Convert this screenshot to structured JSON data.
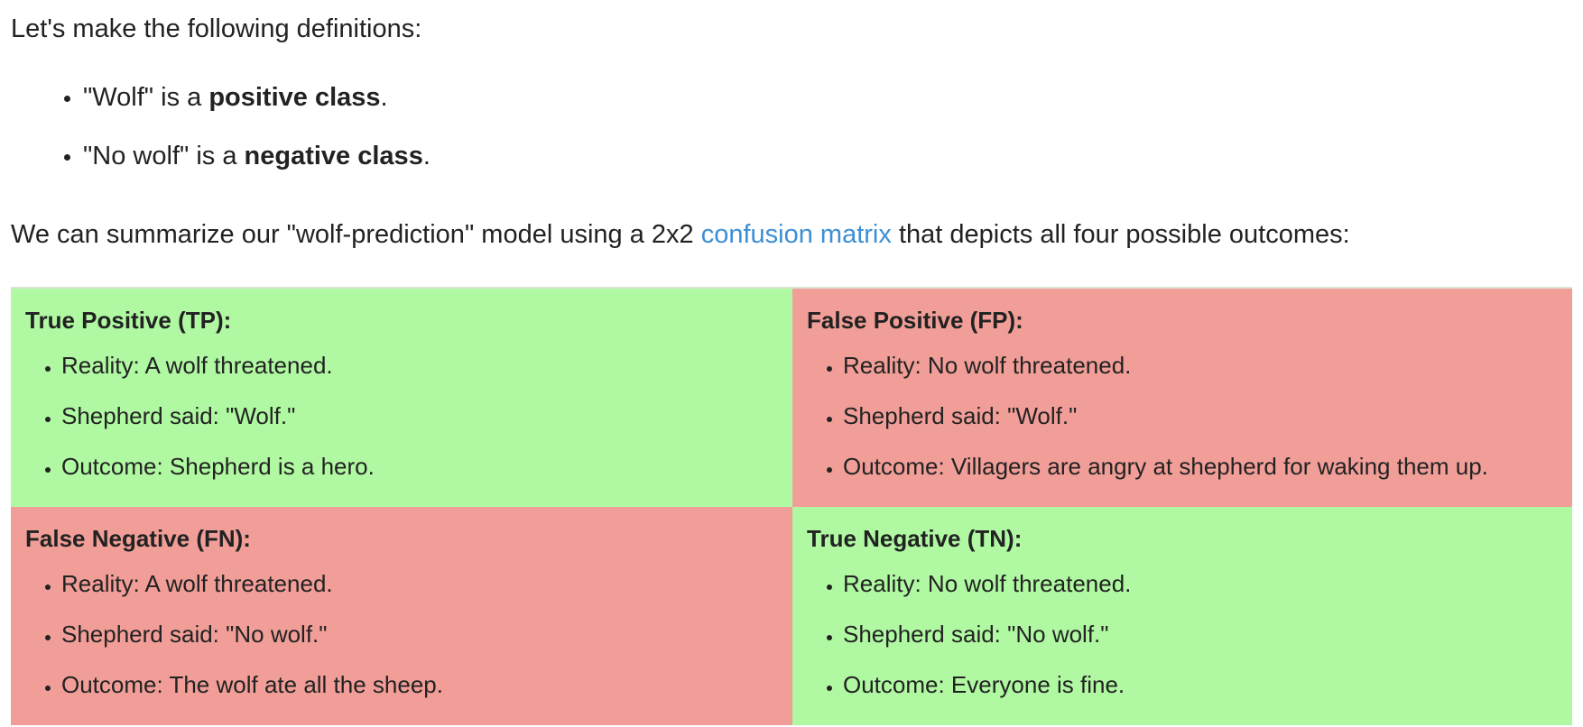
{
  "intro": "Let's make the following definitions:",
  "definitions": [
    {
      "prefix": "\"Wolf\" is a ",
      "bold": "positive class",
      "suffix": "."
    },
    {
      "prefix": "\"No wolf\" is a ",
      "bold": "negative class",
      "suffix": "."
    }
  ],
  "summary": {
    "before": "We can summarize our \"wolf-prediction\" model using a 2x2 ",
    "link": "confusion matrix",
    "after": " that depicts all four possible outcomes:"
  },
  "colors": {
    "correct": "#b0f9a2",
    "incorrect": "#f19e98",
    "link": "#3b8fd6"
  },
  "matrix": {
    "tp": {
      "title": "True Positive (TP):",
      "items": [
        "Reality: A wolf threatened.",
        "Shepherd said: \"Wolf.\"",
        "Outcome: Shepherd is a hero."
      ]
    },
    "fp": {
      "title": "False Positive (FP):",
      "items": [
        "Reality: No wolf threatened.",
        "Shepherd said: \"Wolf.\"",
        "Outcome: Villagers are angry at shepherd for waking them up."
      ]
    },
    "fn": {
      "title": "False Negative (FN):",
      "items": [
        "Reality: A wolf threatened.",
        "Shepherd said: \"No wolf.\"",
        "Outcome: The wolf ate all the sheep."
      ]
    },
    "tn": {
      "title": "True Negative (TN):",
      "items": [
        "Reality: No wolf threatened.",
        "Shepherd said: \"No wolf.\"",
        "Outcome: Everyone is fine."
      ]
    }
  }
}
